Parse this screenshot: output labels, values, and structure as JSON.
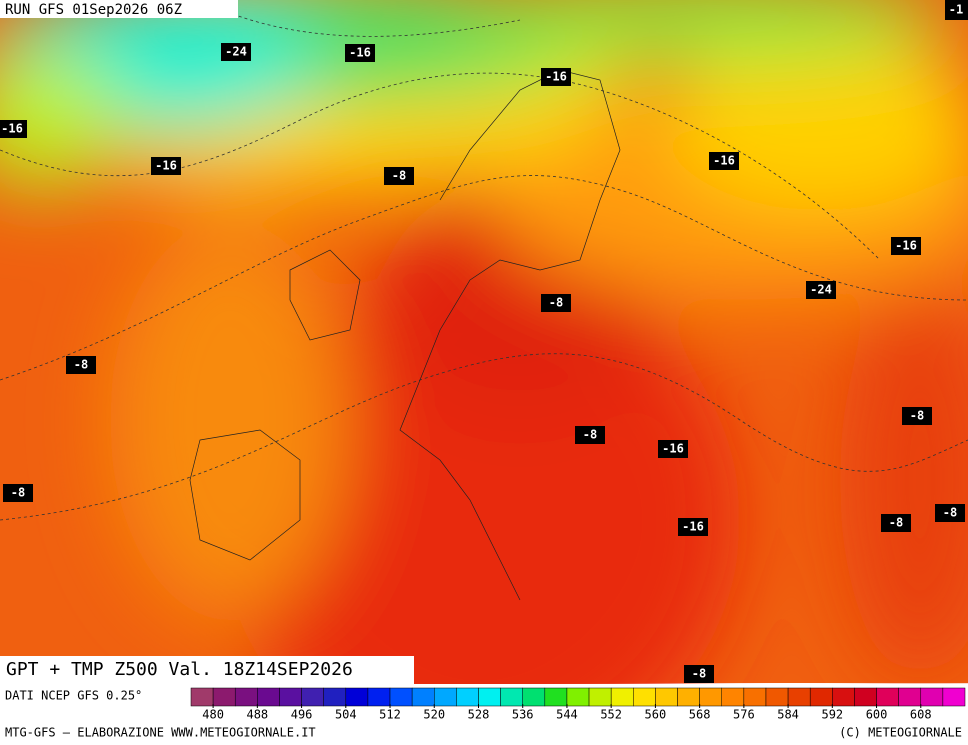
{
  "header": {
    "run": "RUN GFS 01Sep2026 06Z",
    "corner": "-1"
  },
  "contour_labels": [
    "-24",
    "-16",
    "-16",
    "-16",
    "-16",
    "-8",
    "-16",
    "-16",
    "-24",
    "-8",
    "-8",
    "-8",
    "-8",
    "-16",
    "-8",
    "-16",
    "-8",
    "-8",
    "-8"
  ],
  "caption": "GPT + TMP Z500 Val. 18Z14SEP2026",
  "colorbar": {
    "title": "DATI NCEP GFS 0.25°",
    "ticks": [
      480,
      488,
      496,
      504,
      512,
      520,
      528,
      536,
      544,
      552,
      560,
      568,
      576,
      584,
      592,
      600,
      608
    ],
    "colors": [
      "#a03a6a",
      "#8c1a6e",
      "#7a1080",
      "#6a0a90",
      "#5a10a0",
      "#4020b0",
      "#2020c0",
      "#0000d8",
      "#0020f0",
      "#0050ff",
      "#0080ff",
      "#00a8ff",
      "#00d0ff",
      "#00f0f0",
      "#00e8b0",
      "#00e070",
      "#20e020",
      "#80f000",
      "#c0f000",
      "#f0f000",
      "#ffe000",
      "#ffc800",
      "#ffb000",
      "#ff9800",
      "#ff8400",
      "#f87000",
      "#f05800",
      "#e84000",
      "#e02800",
      "#d81010",
      "#d00020",
      "#e0005a",
      "#e00090",
      "#e000b0",
      "#f000d0"
    ]
  },
  "footer": {
    "left": "MTG-GFS — ELABORAZIONE WWW.METEOGIORNALE.IT",
    "right": "(C) METEOGIORNALE"
  }
}
